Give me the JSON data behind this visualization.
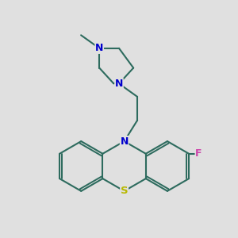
{
  "background_color": "#e0e0e0",
  "bond_color": "#2d6b5e",
  "N_color": "#0000cc",
  "S_color": "#b8b800",
  "F_color": "#cc44aa",
  "line_width": 1.5,
  "figsize": [
    3.0,
    3.0
  ],
  "dpi": 100,
  "font_size": 9.0,
  "xlim": [
    0,
    10
  ],
  "ylim": [
    0,
    10
  ]
}
